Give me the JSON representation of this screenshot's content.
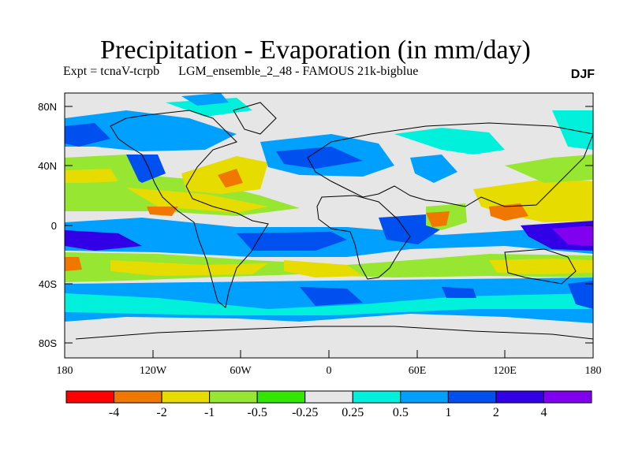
{
  "title": "Precipitation - Evaporation (in mm/day)",
  "subtitle": "Expt = tcnaV-tcrpb      LGM_ensemble_2_48 - FAMOUS 21k-bigblue",
  "season": "DJF",
  "map": {
    "type": "world-contour-map",
    "lon_ticks": [
      "180",
      "120W",
      "60W",
      "0",
      "60E",
      "120E",
      "180"
    ],
    "lat_ticks": [
      "80N",
      "40N",
      "0",
      "40S",
      "80S"
    ],
    "land_color": "#e6e6e6",
    "coastline_color": "#000000"
  },
  "legend": {
    "colors": [
      "#ff0000",
      "#f07800",
      "#e6dc00",
      "#96e632",
      "#32e600",
      "#e6e6e6",
      "#00f0dc",
      "#00a0ff",
      "#0050f0",
      "#3200e6",
      "#8200f0"
    ],
    "labels": [
      "-4",
      "-2",
      "-1",
      "-0.5",
      "-0.25",
      "0.25",
      "0.5",
      "1",
      "2",
      "4"
    ]
  }
}
